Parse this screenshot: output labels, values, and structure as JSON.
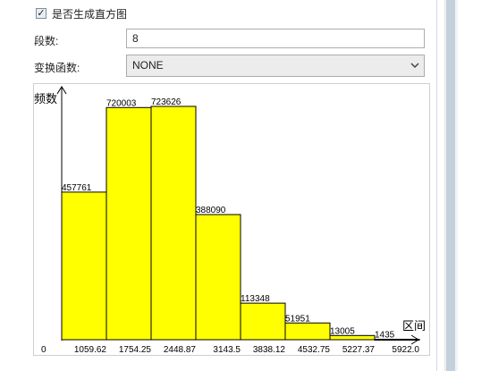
{
  "form": {
    "histogram_checkbox": {
      "checked": true,
      "label": "是否生成直方图",
      "check_glyph": "✓"
    },
    "segments": {
      "label": "段数:",
      "value": "8"
    },
    "transform": {
      "label": "变换函数:",
      "value": "NONE"
    }
  },
  "chart_data": {
    "type": "bar",
    "ylabel": "频数",
    "xlabel": "区间",
    "x_ticks": [
      "0",
      "1059.62",
      "1754.25",
      "2448.87",
      "3143.5",
      "3838.12",
      "4532.75",
      "5227.37",
      "5922.0"
    ],
    "values": [
      457761,
      720003,
      723626,
      388090,
      113348,
      51951,
      13005,
      1435
    ],
    "value_labels": [
      "457761",
      "720003",
      "723626",
      "388090",
      "113348",
      "51951",
      "13005",
      "1435"
    ],
    "bar_color": "#ffff00",
    "ylim": [
      0,
      750000
    ]
  },
  "colors": {
    "scrollbar_thumb": "#c4d0dc",
    "bar_fill": "#ffff00"
  }
}
